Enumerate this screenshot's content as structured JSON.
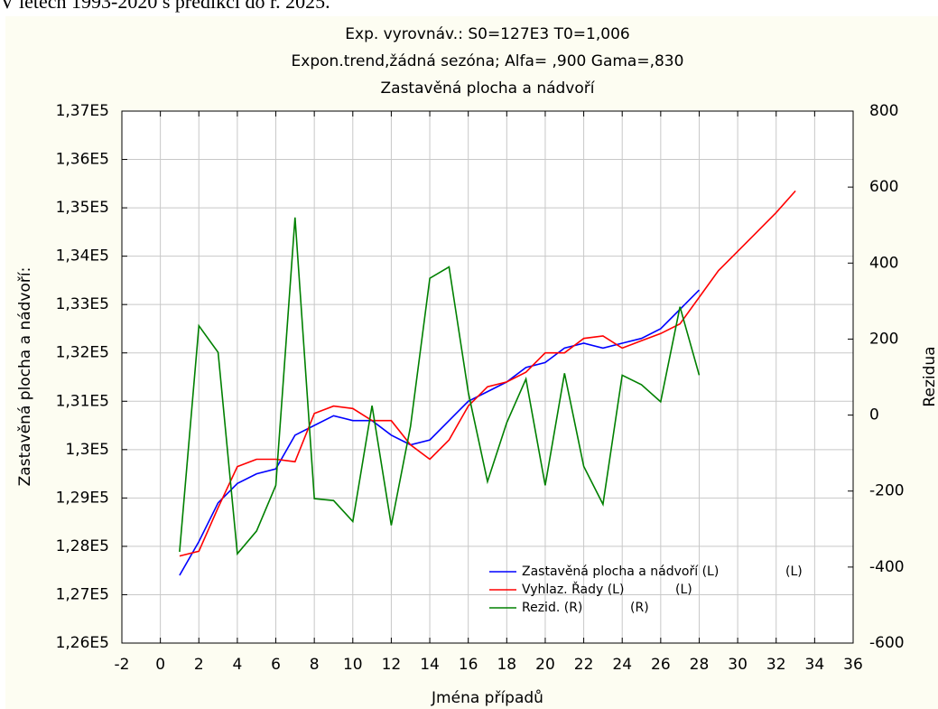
{
  "caption": "V letech 1993-2020 s predikcí do r. 2025.",
  "chart_data": {
    "type": "line",
    "title": [
      "Exp. vyrovnáv.:  S0=127E3 T0=1,006",
      "Expon.trend,žádná sezóna; Alfa=  ,900 Gama=,830",
      "Zastavěná plocha a nádvoří"
    ],
    "x_label": "Jména případů",
    "y_label": "Zastavěná plocha a nádvoří:",
    "y2_label": "Rezidua",
    "xlim": [
      -2,
      36
    ],
    "xticks": [
      -2,
      0,
      2,
      4,
      6,
      8,
      10,
      12,
      14,
      16,
      18,
      20,
      22,
      24,
      26,
      28,
      30,
      32,
      34,
      36
    ],
    "ylim": [
      126000,
      137000
    ],
    "yticks": [
      {
        "value": 126000,
        "label": "1,26E5"
      },
      {
        "value": 127000,
        "label": "1,27E5"
      },
      {
        "value": 128000,
        "label": "1,28E5"
      },
      {
        "value": 129000,
        "label": "1,29E5"
      },
      {
        "value": 130000,
        "label": "1,3E5"
      },
      {
        "value": 131000,
        "label": "1,31E5"
      },
      {
        "value": 132000,
        "label": "1,32E5"
      },
      {
        "value": 133000,
        "label": "1,33E5"
      },
      {
        "value": 134000,
        "label": "1,34E5"
      },
      {
        "value": 135000,
        "label": "1,35E5"
      },
      {
        "value": 136000,
        "label": "1,36E5"
      },
      {
        "value": 137000,
        "label": "1,37E5"
      }
    ],
    "y2lim": [
      -600,
      800
    ],
    "y2ticks": [
      -600,
      -400,
      -200,
      0,
      200,
      400,
      600,
      800
    ],
    "grid": true,
    "legend_position": "bottom-right",
    "series": [
      {
        "name": "Zastavěná plocha a nádvoří (L)",
        "axis_tag": "(L)",
        "color": "#0000ff",
        "x": [
          1,
          2,
          3,
          4,
          5,
          6,
          7,
          8,
          9,
          10,
          11,
          12,
          13,
          14,
          15,
          16,
          17,
          18,
          19,
          20,
          21,
          22,
          23,
          24,
          25,
          26,
          27,
          28
        ],
        "values": [
          127400,
          128100,
          128900,
          129300,
          129500,
          129600,
          130300,
          130500,
          130700,
          130600,
          130600,
          130300,
          130100,
          130200,
          130600,
          131000,
          131200,
          131400,
          131700,
          131800,
          132100,
          132200,
          132100,
          132200,
          132300,
          132500,
          132900,
          133300
        ]
      },
      {
        "name": "Vyhlaz. Řady (L)",
        "axis_tag": "(L)",
        "color": "#ff0000",
        "x": [
          1,
          2,
          3,
          4,
          5,
          6,
          7,
          8,
          9,
          10,
          11,
          12,
          13,
          14,
          15,
          16,
          17,
          18,
          19,
          20,
          21,
          22,
          23,
          24,
          25,
          26,
          27,
          28,
          29,
          30,
          31,
          32,
          33
        ],
        "values": [
          127800,
          127900,
          128800,
          129650,
          129800,
          129800,
          129750,
          130750,
          130900,
          130850,
          130600,
          130600,
          130100,
          129800,
          130200,
          130900,
          131300,
          131400,
          131600,
          132000,
          132000,
          132300,
          132350,
          132100,
          132250,
          132400,
          132600,
          133150,
          133700,
          134100,
          134500,
          134900,
          135350
        ]
      },
      {
        "name": "Rezid. (R)",
        "axis_tag": "(R)",
        "color": "#008000",
        "axis": "y2",
        "x": [
          1,
          2,
          3,
          4,
          5,
          6,
          7,
          8,
          9,
          10,
          11,
          12,
          13,
          14,
          15,
          16,
          17,
          18,
          19,
          20,
          21,
          22,
          23,
          24,
          25,
          26,
          27,
          28
        ],
        "values": [
          -360,
          235,
          165,
          -365,
          -305,
          -185,
          520,
          -220,
          -225,
          -280,
          25,
          -290,
          -30,
          360,
          390,
          60,
          -175,
          -20,
          95,
          -185,
          110,
          -135,
          -235,
          105,
          80,
          35,
          285,
          105
        ]
      }
    ]
  }
}
